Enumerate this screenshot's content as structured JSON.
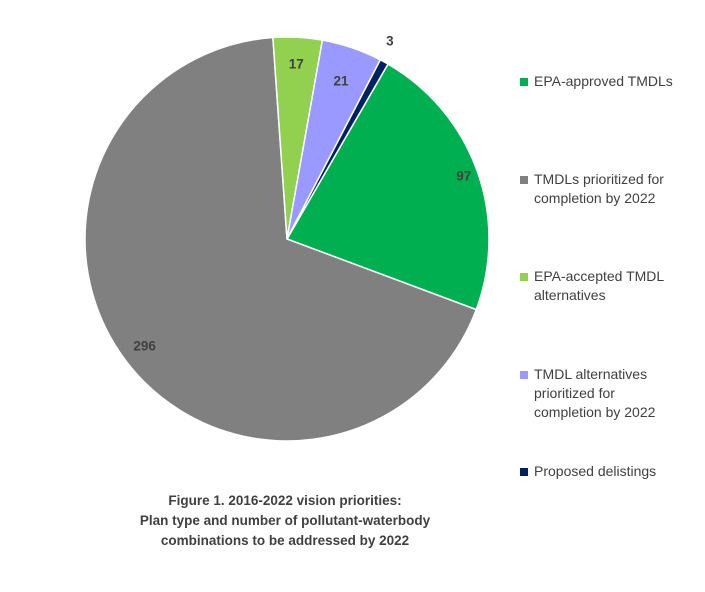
{
  "chart_data": {
    "type": "pie",
    "categories": [
      "EPA-approved TMDLs",
      "TMDLs prioritized for completion by 2022",
      "EPA-accepted TMDL alternatives",
      "TMDL alternatives prioritized for completion by 2022",
      "Proposed delistings"
    ],
    "legend_lines": [
      [
        "EPA-approved TMDLs"
      ],
      [
        "TMDLs prioritized for",
        "completion by 2022"
      ],
      [
        "EPA-accepted TMDL",
        "alternatives"
      ],
      [
        "TMDL alternatives",
        "prioritized for",
        "completion by 2022"
      ],
      [
        "Proposed delistings"
      ]
    ],
    "values": [
      97,
      296,
      17,
      21,
      3
    ],
    "colors": [
      "#00b050",
      "#808080",
      "#92d050",
      "#9999ff",
      "#002060"
    ],
    "legend_position": "right"
  },
  "caption": {
    "line1": "Figure 1.  2016-2022 vision priorities:",
    "line2": "Plan type and number of pollutant-waterbody",
    "line3": "combinations to be addressed by 2022"
  }
}
